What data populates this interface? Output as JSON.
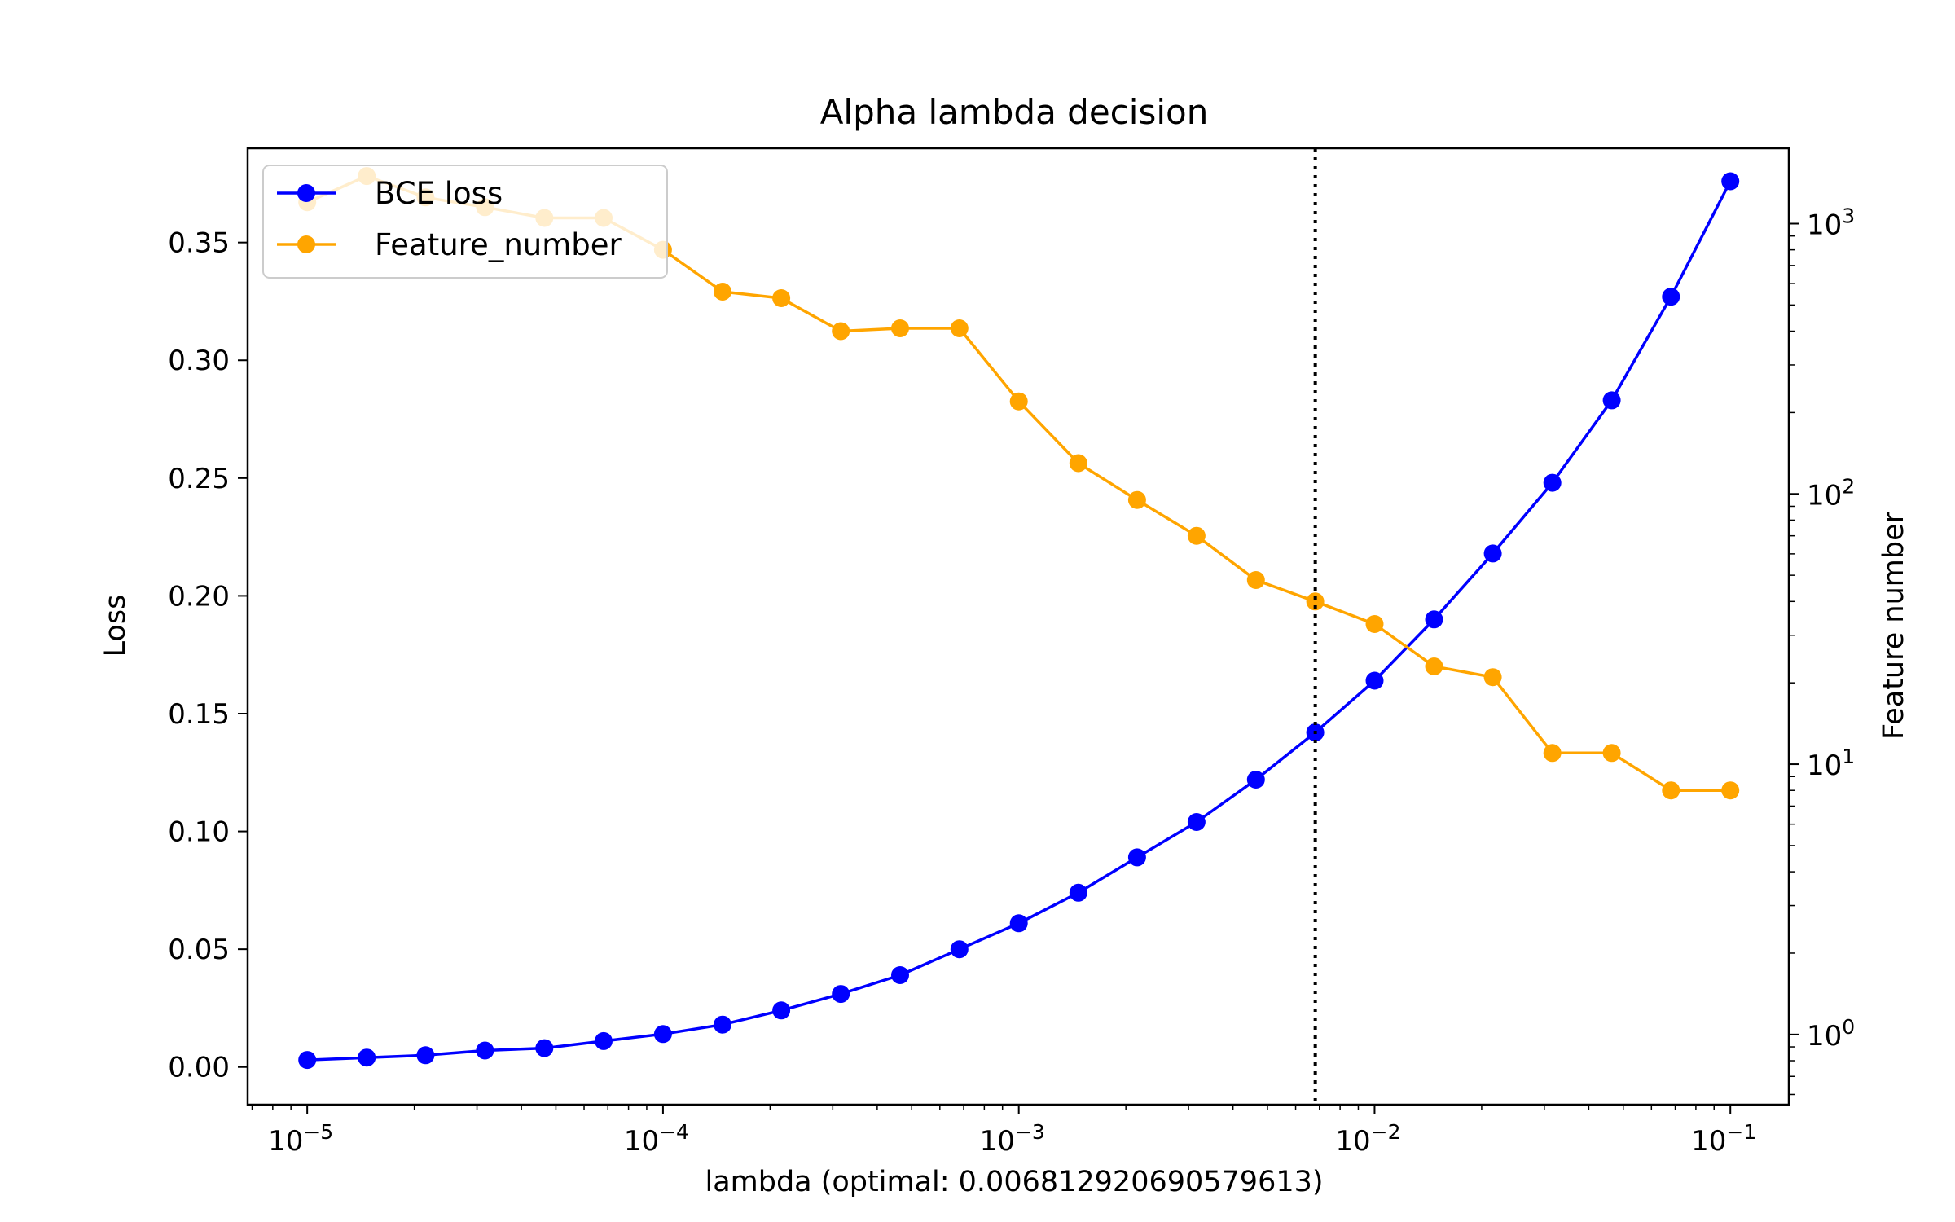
{
  "chart_data": {
    "type": "line",
    "title": "Alpha lambda decision",
    "xlabel": "lambda (optimal: 0.006812920690579613)",
    "ylabel_left": "Loss",
    "ylabel_right": "Feature number",
    "x_scale": "log",
    "y_right_scale": "log",
    "xlim": [
      6.8e-06,
      0.146
    ],
    "ylim_left": [
      -0.016,
      0.39
    ],
    "ylim_right": [
      0.55,
      1900
    ],
    "grid": false,
    "legend_position": "upper-left",
    "x_ticks": [
      {
        "value": 1e-05,
        "base": "10",
        "exp": "−5"
      },
      {
        "value": 0.0001,
        "base": "10",
        "exp": "−4"
      },
      {
        "value": 0.001,
        "base": "10",
        "exp": "−3"
      },
      {
        "value": 0.01,
        "base": "10",
        "exp": "−2"
      },
      {
        "value": 0.1,
        "base": "10",
        "exp": "−1"
      }
    ],
    "y_left_ticks": [
      {
        "value": 0.0,
        "label": "0.00"
      },
      {
        "value": 0.05,
        "label": "0.05"
      },
      {
        "value": 0.1,
        "label": "0.10"
      },
      {
        "value": 0.15,
        "label": "0.15"
      },
      {
        "value": 0.2,
        "label": "0.20"
      },
      {
        "value": 0.25,
        "label": "0.25"
      },
      {
        "value": 0.3,
        "label": "0.30"
      },
      {
        "value": 0.35,
        "label": "0.35"
      }
    ],
    "y_right_ticks": [
      {
        "value": 1,
        "base": "10",
        "exp": "0"
      },
      {
        "value": 10,
        "base": "10",
        "exp": "1"
      },
      {
        "value": 100,
        "base": "10",
        "exp": "2"
      },
      {
        "value": 1000,
        "base": "10",
        "exp": "3"
      }
    ],
    "vline": {
      "x": 0.006812920690579613,
      "style": "dotted",
      "color": "#000000"
    },
    "x": [
      1e-05,
      1.47e-05,
      2.15e-05,
      3.16e-05,
      4.64e-05,
      6.81e-05,
      0.0001,
      0.000147,
      0.000215,
      0.000316,
      0.000464,
      0.000681,
      0.001,
      0.00147,
      0.00215,
      0.00316,
      0.00464,
      0.00681,
      0.01,
      0.0147,
      0.0215,
      0.0316,
      0.0464,
      0.0681,
      0.1
    ],
    "series": [
      {
        "name": "BCE loss",
        "axis": "left",
        "color": "#0000ff",
        "marker": "circle",
        "values": [
          0.003,
          0.004,
          0.005,
          0.007,
          0.008,
          0.011,
          0.014,
          0.018,
          0.024,
          0.031,
          0.039,
          0.05,
          0.061,
          0.074,
          0.089,
          0.104,
          0.122,
          0.142,
          0.164,
          0.19,
          0.218,
          0.248,
          0.283,
          0.327,
          0.376
        ]
      },
      {
        "name": "Feature_number",
        "axis": "right",
        "color": "#ffa500",
        "marker": "circle",
        "values": [
          1200,
          1500,
          1250,
          1150,
          1050,
          1050,
          800,
          560,
          530,
          400,
          410,
          410,
          220,
          130,
          95,
          70,
          48,
          40,
          33,
          23,
          21,
          11,
          11,
          8,
          8
        ]
      }
    ]
  }
}
